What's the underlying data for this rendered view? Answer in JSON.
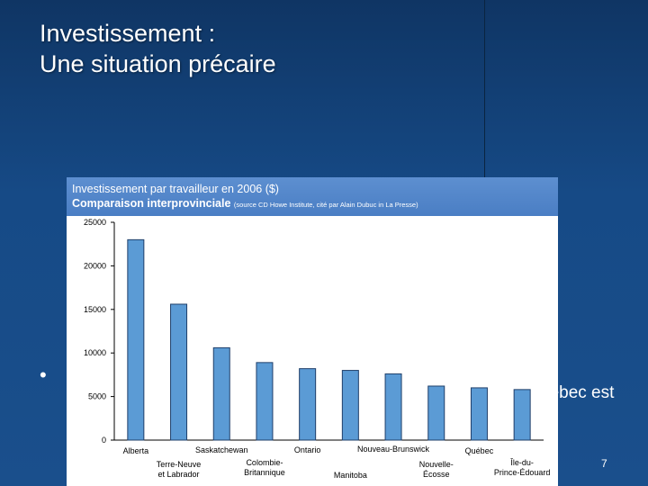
{
  "slide": {
    "title_line1": "Investissement :",
    "title_line2": "Une situation précaire",
    "bullet_symbol": "•",
    "bullet_text_visible": "uébec est",
    "page_number": "7"
  },
  "colors": {
    "background": "#164a86",
    "header": "#4a7ec4",
    "bar": "#5b9bd5",
    "bar_stroke": "#1f3f6a"
  },
  "chart_data": {
    "type": "bar",
    "title": "Investissement par travailleur en 2006 ($)",
    "subtitle": "Comparaison interprovinciale",
    "source": "(source CD Howe Institute, cité par Alain Dubuc in La Presse)",
    "categories": [
      "Alberta",
      "Terre-Neuve et Labrador",
      "Saskatchewan",
      "Colombie-Britannique",
      "Ontario",
      "Manitoba",
      "Nouveau-Brunswick",
      "Nouvelle-Écosse",
      "Québec",
      "Île-du-Prince-Édouard"
    ],
    "values": [
      23000,
      15600,
      10600,
      8900,
      8200,
      8000,
      7600,
      6200,
      6000,
      5800
    ],
    "ylim": [
      0,
      25000
    ],
    "yticks": [
      "25000",
      "20000",
      "15000",
      "10000",
      "5000",
      "0"
    ],
    "xlabel": "",
    "ylabel": "",
    "grid": false,
    "legend": "none"
  }
}
